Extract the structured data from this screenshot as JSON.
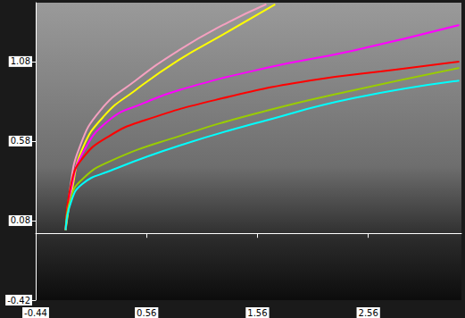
{
  "chart_data": {
    "type": "line",
    "xlim": [
      -0.44,
      3.4
    ],
    "xticks": [
      -0.44,
      0.56,
      1.56,
      2.56
    ],
    "ylim": [
      -0.42,
      1.45
    ],
    "yticks": [
      -0.42,
      0.08,
      0.58,
      1.08
    ],
    "grid": false,
    "series": [
      {
        "color": "#f4a0c0",
        "x": [
          -0.17,
          -0.13,
          -0.05,
          0.14,
          0.46,
          0.85,
          1.25,
          1.64
        ],
        "values": [
          0.02,
          0.28,
          0.53,
          0.77,
          0.96,
          1.15,
          1.31,
          1.44
        ]
      },
      {
        "color": "#ffff00",
        "x": [
          -0.17,
          -0.11,
          -0.02,
          0.18,
          0.46,
          0.85,
          1.25,
          1.72
        ],
        "values": [
          0.02,
          0.28,
          0.53,
          0.74,
          0.9,
          1.09,
          1.25,
          1.44
        ]
      },
      {
        "color": "#ff00ff",
        "x": [
          -0.17,
          -0.12,
          -0.02,
          0.22,
          0.54,
          0.85,
          1.64,
          2.43,
          3.38
        ],
        "values": [
          0.02,
          0.28,
          0.5,
          0.71,
          0.82,
          0.9,
          1.04,
          1.15,
          1.31
        ]
      },
      {
        "color": "#ff0000",
        "x": [
          -0.17,
          -0.12,
          -0.02,
          0.22,
          0.54,
          1.25,
          2.03,
          2.82,
          3.38
        ],
        "values": [
          0.02,
          0.31,
          0.47,
          0.61,
          0.71,
          0.85,
          0.96,
          1.03,
          1.08
        ]
      },
      {
        "color": "#99cc00",
        "x": [
          -0.17,
          -0.12,
          -0.02,
          0.22,
          0.85,
          1.64,
          2.43,
          3.38
        ],
        "values": [
          0.02,
          0.23,
          0.34,
          0.45,
          0.61,
          0.77,
          0.9,
          1.04
        ]
      },
      {
        "color": "#00ffff",
        "x": [
          -0.17,
          -0.12,
          -0.02,
          0.22,
          0.85,
          1.64,
          2.43,
          3.38
        ],
        "values": [
          0.02,
          0.2,
          0.31,
          0.39,
          0.55,
          0.71,
          0.85,
          0.96
        ]
      }
    ]
  }
}
